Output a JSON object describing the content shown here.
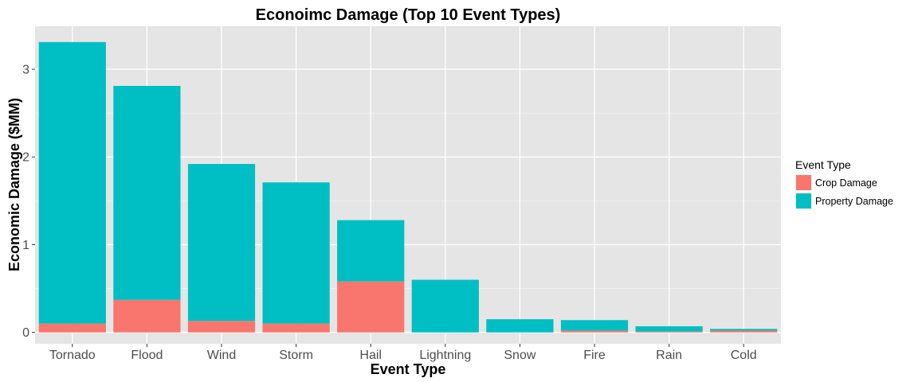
{
  "chart_data": {
    "type": "bar",
    "stacked": true,
    "title": "Econoimc Damage (Top 10 Event Types)",
    "xlabel": "Event Type",
    "ylabel": "Economic Damage ($MM)",
    "categories": [
      "Tornado",
      "Flood",
      "Wind",
      "Storm",
      "Hail",
      "Lightning",
      "Snow",
      "Fire",
      "Rain",
      "Cold"
    ],
    "series": [
      {
        "name": "Crop Damage",
        "color": "#F8766D",
        "values": [
          0.1,
          0.37,
          0.13,
          0.1,
          0.58,
          0.0,
          0.0,
          0.02,
          0.01,
          0.02
        ]
      },
      {
        "name": "Property Damage",
        "color": "#00BFC4",
        "values": [
          3.21,
          2.44,
          1.79,
          1.61,
          0.7,
          0.6,
          0.15,
          0.12,
          0.06,
          0.02
        ]
      }
    ],
    "ylim": [
      -0.13,
      3.49
    ],
    "yticks": [
      0,
      1,
      2,
      3
    ],
    "grid": true,
    "legend": {
      "title": "Event Type",
      "placement": "right"
    }
  }
}
